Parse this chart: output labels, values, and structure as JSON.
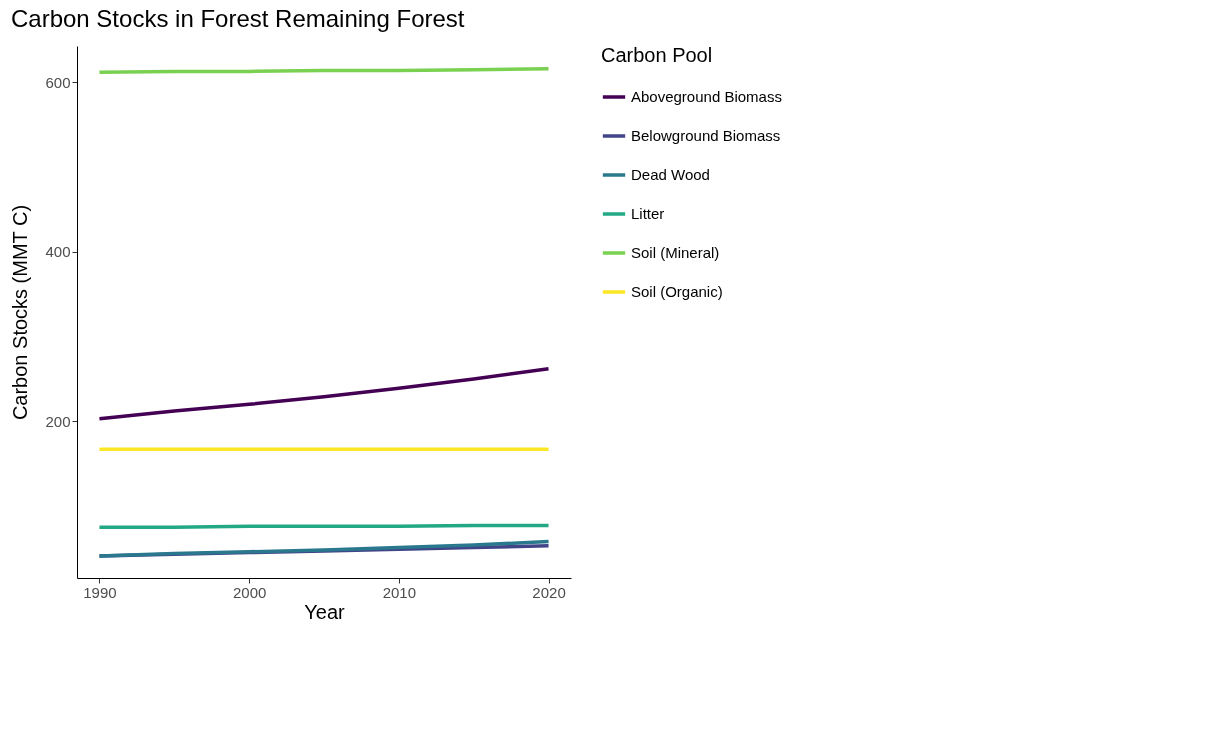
{
  "chart_data": {
    "type": "line",
    "title": "Carbon Stocks in Forest Remaining Forest",
    "xlabel": "Year",
    "ylabel": "Carbon Stocks (MMT C)",
    "legend_title": "Carbon Pool",
    "legend": "right",
    "grid": false,
    "x": [
      1990,
      1995,
      2000,
      2005,
      2010,
      2015,
      2020
    ],
    "xlim": [
      1988.5,
      2021.5
    ],
    "xticks": [
      1990,
      2000,
      2010,
      2020
    ],
    "ylim": [
      15,
      643
    ],
    "yticks": [
      200,
      400,
      600
    ],
    "series": [
      {
        "name": "Aboveground Biomass",
        "color": "#440154",
        "values": [
          203,
          212,
          220,
          229,
          239,
          250,
          262
        ]
      },
      {
        "name": "Belowground Biomass",
        "color": "#414487",
        "values": [
          41,
          43,
          45,
          47,
          49,
          51,
          53
        ]
      },
      {
        "name": "Dead Wood",
        "color": "#2a788e",
        "values": [
          41,
          44,
          46,
          48,
          51,
          54,
          58
        ]
      },
      {
        "name": "Litter",
        "color": "#22a884",
        "values": [
          75,
          75,
          76,
          76,
          76,
          77,
          77
        ]
      },
      {
        "name": "Soil (Mineral)",
        "color": "#7ad151",
        "values": [
          612,
          613,
          613,
          614,
          614,
          615,
          616
        ]
      },
      {
        "name": "Soil (Organic)",
        "color": "#fde725",
        "values": [
          167,
          167,
          167,
          167,
          167,
          167,
          167
        ]
      }
    ]
  }
}
